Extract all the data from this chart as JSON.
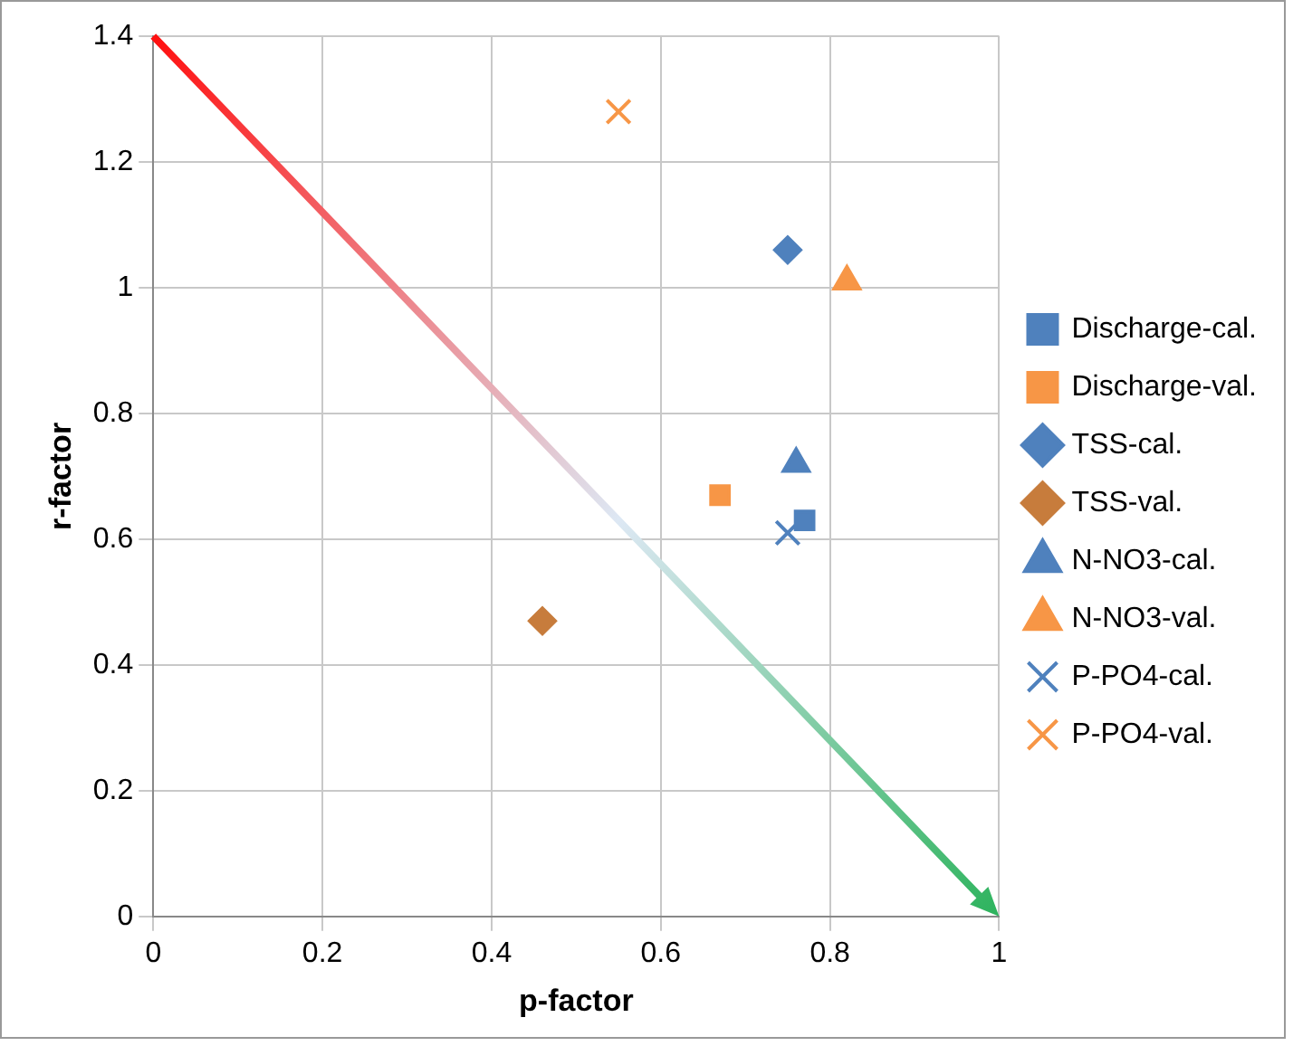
{
  "chart_data": {
    "type": "scatter",
    "xlabel": "p-factor",
    "ylabel": "r-factor",
    "xlim": [
      0,
      1
    ],
    "xticks": [
      0,
      0.2,
      0.4,
      0.6,
      0.8,
      1
    ],
    "ylim": [
      0,
      1.4
    ],
    "yticks": [
      0,
      0.2,
      0.4,
      0.6,
      0.8,
      1,
      1.2,
      1.4
    ],
    "grid": true,
    "legend": "right",
    "series": [
      {
        "name": "Discharge-cal.",
        "color": "#4f81bd",
        "marker": "square",
        "x": [
          0.77
        ],
        "values": [
          0.63
        ]
      },
      {
        "name": "Discharge-val.",
        "color": "#f79646",
        "marker": "square",
        "x": [
          0.67
        ],
        "values": [
          0.67
        ]
      },
      {
        "name": "TSS-cal.",
        "color": "#4f81bd",
        "marker": "diamond",
        "x": [
          0.75
        ],
        "values": [
          1.06
        ]
      },
      {
        "name": "TSS-val.",
        "color": "#c77c3c",
        "marker": "diamond",
        "x": [
          0.46
        ],
        "values": [
          0.47
        ]
      },
      {
        "name": "N-NO3-cal.",
        "color": "#4f81bd",
        "marker": "triangle",
        "x": [
          0.76
        ],
        "values": [
          0.72
        ]
      },
      {
        "name": "N-NO3-val.",
        "color": "#f79646",
        "marker": "triangle",
        "x": [
          0.82
        ],
        "values": [
          1.01
        ]
      },
      {
        "name": "P-PO4-cal.",
        "color": "#4f81bd",
        "marker": "cross",
        "x": [
          0.75
        ],
        "values": [
          0.61
        ]
      },
      {
        "name": "P-PO4-val.",
        "color": "#f79646",
        "marker": "cross",
        "x": [
          0.55
        ],
        "values": [
          1.28
        ]
      }
    ]
  }
}
